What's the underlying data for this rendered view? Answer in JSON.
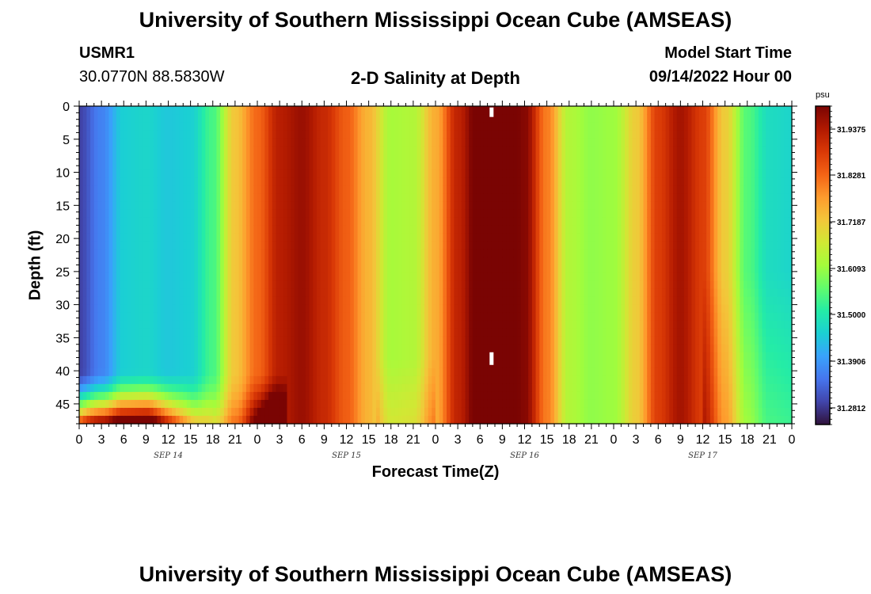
{
  "header": {
    "title": "University of Southern Mississippi Ocean Cube (AMSEAS)",
    "station_id": "USMR1",
    "station_coords": "30.0770N  88.5830W",
    "plot_title": "2-D Salinity at Depth",
    "model_start_label": "Model Start Time",
    "model_start_value": "09/14/2022 Hour 00"
  },
  "footer": {
    "title": "University of Southern Mississippi Ocean Cube (AMSEAS)"
  },
  "chart_data": {
    "type": "heatmap",
    "title": "2-D Salinity at Depth",
    "xlabel": "Forecast Time(Z)",
    "ylabel": "Depth (ft)",
    "x_ticks": [
      "0",
      "3",
      "6",
      "9",
      "12",
      "15",
      "18",
      "21",
      "0",
      "3",
      "6",
      "9",
      "12",
      "15",
      "18",
      "21",
      "0",
      "3",
      "6",
      "9",
      "12",
      "15",
      "18",
      "21",
      "0",
      "3",
      "6",
      "9",
      "12",
      "15",
      "18",
      "21",
      "0"
    ],
    "y_ticks": [
      0,
      5,
      10,
      15,
      20,
      25,
      30,
      35,
      40,
      45
    ],
    "ylim": [
      0,
      48
    ],
    "xlim_hours": [
      0,
      96
    ],
    "date_labels": [
      {
        "label": "SEP 14",
        "hour": 12
      },
      {
        "label": "SEP 15",
        "hour": 36
      },
      {
        "label": "SEP 16",
        "hour": 60
      },
      {
        "label": "SEP 17",
        "hour": 84
      }
    ],
    "colorbar": {
      "unit": "psu",
      "ticks": [
        "31.9375",
        "31.8281",
        "31.7187",
        "31.6093",
        "31.5000",
        "31.3906",
        "31.2812"
      ],
      "colors": [
        "#30123b",
        "#4145ab",
        "#4675ed",
        "#39a2fc",
        "#1bcfd4",
        "#24eca6",
        "#61fc6c",
        "#a4fc3b",
        "#d1e834",
        "#f3c63a",
        "#fe9b2d",
        "#f36315",
        "#d93806",
        "#b11901",
        "#7a0403"
      ]
    },
    "surface_salinity_by_hour": [
      {
        "hour": 0,
        "value": 31.31
      },
      {
        "hour": 3,
        "value": 31.38
      },
      {
        "hour": 6,
        "value": 31.47
      },
      {
        "hour": 9,
        "value": 31.48
      },
      {
        "hour": 12,
        "value": 31.46
      },
      {
        "hour": 15,
        "value": 31.47
      },
      {
        "hour": 18,
        "value": 31.55
      },
      {
        "hour": 21,
        "value": 31.73
      },
      {
        "hour": 24,
        "value": 31.83
      },
      {
        "hour": 27,
        "value": 31.93
      },
      {
        "hour": 30,
        "value": 31.96
      },
      {
        "hour": 33,
        "value": 31.91
      },
      {
        "hour": 36,
        "value": 31.84
      },
      {
        "hour": 39,
        "value": 31.75
      },
      {
        "hour": 42,
        "value": 31.63
      },
      {
        "hour": 45,
        "value": 31.64
      },
      {
        "hour": 48,
        "value": 31.76
      },
      {
        "hour": 51,
        "value": 31.92
      },
      {
        "hour": 54,
        "value": 32.02
      },
      {
        "hour": 57,
        "value": 32.03
      },
      {
        "hour": 60,
        "value": 31.98
      },
      {
        "hour": 63,
        "value": 31.81
      },
      {
        "hour": 66,
        "value": 31.64
      },
      {
        "hour": 69,
        "value": 31.61
      },
      {
        "hour": 72,
        "value": 31.62
      },
      {
        "hour": 75,
        "value": 31.72
      },
      {
        "hour": 78,
        "value": 31.88
      },
      {
        "hour": 81,
        "value": 31.95
      },
      {
        "hour": 84,
        "value": 31.88
      },
      {
        "hour": 87,
        "value": 31.72
      },
      {
        "hour": 90,
        "value": 31.56
      },
      {
        "hour": 93,
        "value": 31.49
      },
      {
        "hour": 96,
        "value": 31.48
      }
    ],
    "bottom_layer_note": "Salinity increases toward the bottom (42-48 ft) during Sep 14, reaching about 31.83-31.95 psu"
  }
}
